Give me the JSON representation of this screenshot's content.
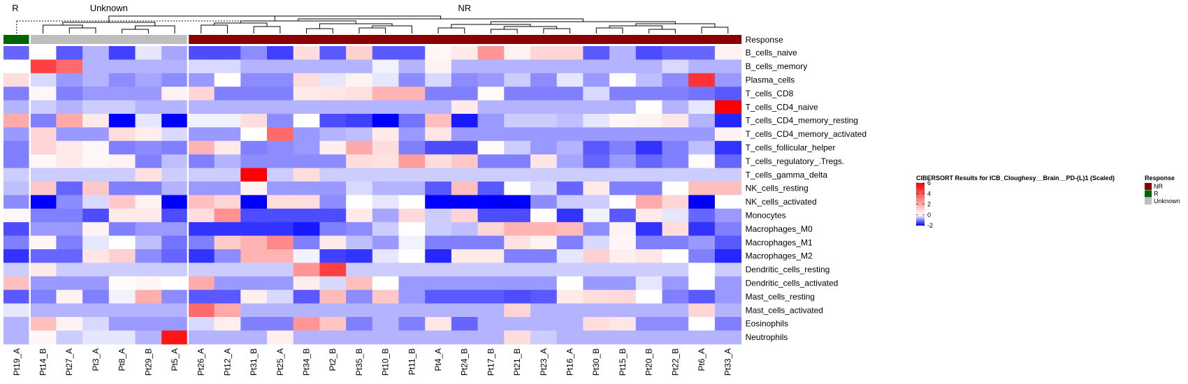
{
  "chart_data": {
    "type": "heatmap",
    "title": "CIBERSORT Results for ICB_Cloughesy__Brain__PD-(L)1 (Scaled)",
    "columns": [
      "Pt19_A",
      "Pt14_B",
      "Pt27_A",
      "Pt3_A",
      "Pt8_A",
      "Pt29_B",
      "Pt5_A",
      "Pt26_A",
      "Pt12_A",
      "Pt31_B",
      "Pt25_A",
      "Pt34_B",
      "Pt2_B",
      "Pt35_B",
      "Pt10_B",
      "Pt11_B",
      "Pt4_A",
      "Pt24_B",
      "Pt17_B",
      "Pt21_B",
      "Pt23_A",
      "Pt16_A",
      "Pt30_B",
      "Pt15_B",
      "Pt20_B",
      "Pt22_B",
      "Pt6_A",
      "Pt33_A"
    ],
    "rows": [
      "B_cells_naive",
      "B_cells_memory",
      "Plasma_cells",
      "T_cells_CD8",
      "T_cells_CD4_naive",
      "T_cells_CD4_memory_resting",
      "T_cells_CD4_memory_activated",
      "T_cells_follicular_helper",
      "T_cells_regulatory_.Tregs.",
      "T_cells_gamma_delta",
      "NK_cells_resting",
      "NK_cells_activated",
      "Monocytes",
      "Macrophages_M0",
      "Macrophages_M1",
      "Macrophages_M2",
      "Dendritic_cells_resting",
      "Dendritic_cells_activated",
      "Mast_cells_resting",
      "Mast_cells_activated",
      "Eosinophils",
      "Neutrophils"
    ],
    "response": [
      "R",
      "Unknown",
      "Unknown",
      "Unknown",
      "Unknown",
      "Unknown",
      "Unknown",
      "NR",
      "NR",
      "NR",
      "NR",
      "NR",
      "NR",
      "NR",
      "NR",
      "NR",
      "NR",
      "NR",
      "NR",
      "NR",
      "NR",
      "NR",
      "NR",
      "NR",
      "NR",
      "NR",
      "NR",
      "NR"
    ],
    "values": [
      [
        -1.2,
        0,
        -1.3,
        -0.6,
        -1.5,
        -0.2,
        -0.7,
        -1.4,
        -1.4,
        -0.9,
        -1.5,
        0.8,
        -1.3,
        1.1,
        -1.3,
        -1.3,
        0.2,
        0.5,
        2.5,
        0.3,
        1.0,
        1.0,
        -1.3,
        -0.6,
        -1.4,
        -1.2,
        -1.2,
        0.3
      ],
      [
        0,
        4.5,
        3.5,
        -0.6,
        -0.6,
        -0.6,
        -0.6,
        -0.3,
        -0.3,
        -0.6,
        -0.6,
        -0.6,
        -0.6,
        -0.6,
        -0.1,
        -0.6,
        0.3,
        -0.6,
        -0.6,
        -0.6,
        -0.6,
        -0.6,
        -0.6,
        -0.6,
        -0.6,
        -0.3,
        -0.6,
        -0.6
      ],
      [
        0.8,
        -0.3,
        -0.8,
        -0.6,
        -0.9,
        -0.7,
        -0.9,
        -0.8,
        0,
        -0.9,
        -0.9,
        0.8,
        -0.2,
        0.3,
        -0.2,
        -0.9,
        -0.3,
        -0.9,
        -0.8,
        -0.4,
        -0.9,
        -0.2,
        -0.8,
        0,
        -0.5,
        -0.9,
        4.8,
        -0.8
      ],
      [
        -1.0,
        0.2,
        -1.0,
        -0.8,
        -0.8,
        -0.8,
        0.3,
        1.0,
        -1.0,
        -1.0,
        -1.0,
        0.5,
        0.6,
        0.7,
        1.8,
        1.8,
        -1.0,
        -1.0,
        0.1,
        -1.0,
        -1.0,
        -1.0,
        -0.3,
        -1.0,
        -1.0,
        -1.0,
        -1.1,
        -1.3
      ],
      [
        -0.6,
        -0.4,
        -0.6,
        -0.4,
        -0.4,
        -0.6,
        -0.6,
        -0.6,
        -0.6,
        -0.6,
        -0.6,
        -0.6,
        -0.6,
        -0.6,
        -0.6,
        -0.6,
        -0.6,
        0.5,
        -0.6,
        -0.6,
        -0.6,
        -0.6,
        -0.6,
        -0.6,
        0,
        -0.6,
        -0.2,
        6.0
      ],
      [
        2.0,
        -1.0,
        2.0,
        0.5,
        -2.0,
        -0.2,
        -2.0,
        -0.1,
        -0.1,
        0.8,
        -0.9,
        0,
        -1.4,
        -1.5,
        -2.0,
        -1.1,
        1.5,
        -1.8,
        -0.8,
        -0.4,
        -0.4,
        -0.5,
        -0.2,
        0.2,
        0.3,
        0.6,
        -0.6,
        -1.7
      ],
      [
        -0.8,
        1.0,
        -0.8,
        -0.8,
        0.8,
        0.4,
        -0.3,
        -0.8,
        -0.8,
        0,
        3.5,
        -0.8,
        -0.6,
        -0.5,
        0.5,
        -0.8,
        0.6,
        -0.8,
        -0.8,
        -0.8,
        -0.8,
        -0.8,
        -0.8,
        -0.8,
        -0.8,
        -0.8,
        -0.8,
        0.3
      ],
      [
        -1.0,
        1.0,
        0.5,
        0.2,
        -1.0,
        -0.9,
        -1.0,
        1.8,
        0.5,
        -1.0,
        -0.9,
        -0.8,
        0.4,
        2.0,
        0.8,
        -1.0,
        -1.4,
        -1.4,
        0.1,
        -0.4,
        -0.8,
        -0.6,
        -1.3,
        -1.0,
        -1.6,
        -1.0,
        -0.5,
        -1.6
      ],
      [
        -1.0,
        0.2,
        0.5,
        0.2,
        0.3,
        -1.0,
        -0.5,
        -1.0,
        -0.6,
        -0.9,
        -0.9,
        -0.9,
        -0.9,
        0.8,
        0.7,
        2.3,
        0.8,
        1.3,
        -1.0,
        -1.0,
        0.6,
        -0.7,
        -1.2,
        -0.8,
        -1.2,
        -1.0,
        0.1,
        -1.2
      ],
      [
        -0.4,
        -0.4,
        -0.4,
        -0.4,
        -0.4,
        0.7,
        -0.4,
        -0.4,
        -0.4,
        6.0,
        -0.4,
        0.8,
        -0.4,
        -0.4,
        -0.4,
        -0.4,
        -0.4,
        -0.4,
        -0.4,
        -0.4,
        -0.4,
        -0.4,
        -0.4,
        -0.4,
        -0.4,
        -0.4,
        -0.4,
        -0.4
      ],
      [
        -0.5,
        1.3,
        -1.2,
        1.3,
        -1.0,
        -1.0,
        -0.6,
        -0.8,
        -0.8,
        0.3,
        -0.8,
        -0.8,
        -0.8,
        -0.3,
        -0.6,
        -0.6,
        -1.3,
        1.5,
        -1.3,
        0,
        -0.3,
        -1.2,
        0.5,
        -1.0,
        -1.0,
        0,
        1.5,
        1.5
      ],
      [
        -0.9,
        -2.0,
        -0.9,
        -0.3,
        1.3,
        0.3,
        -2.0,
        1.5,
        1.0,
        -2.0,
        0.8,
        0.8,
        -0.9,
        0,
        -0.2,
        0,
        -2.0,
        -2.0,
        -2.0,
        -2.0,
        -0.9,
        -0.4,
        -0.4,
        0,
        2.0,
        1.0,
        -2.0,
        0
      ],
      [
        0.2,
        -1.0,
        -1.0,
        -1.4,
        0.5,
        0.5,
        -1.4,
        0.8,
        2.6,
        -1.4,
        -1.4,
        -1.4,
        -1.4,
        0.5,
        -0.7,
        0.9,
        -0.4,
        1.0,
        -1.4,
        -1.4,
        0,
        -1.6,
        -0.1,
        -1.3,
        0.5,
        -0.2,
        -1.2,
        -0.8
      ],
      [
        -1.4,
        -0.8,
        -0.8,
        0.3,
        -1.0,
        -0.8,
        -0.8,
        -1.6,
        -1.6,
        -1.6,
        -1.6,
        -1.8,
        -1.0,
        -0.9,
        -0.4,
        0,
        -0.4,
        -0.5,
        1.0,
        1.8,
        1.8,
        1.6,
        -0.9,
        0.3,
        -1.6,
        0.8,
        -1.6,
        -1.0
      ],
      [
        -1.0,
        0.2,
        -1.0,
        -0.2,
        0,
        -0.5,
        -1.1,
        -1.0,
        1.2,
        1.8,
        2.8,
        -1.0,
        0.5,
        -0.5,
        -0.8,
        -0.1,
        -1.0,
        -1.0,
        -1.0,
        0.7,
        0.3,
        -1.0,
        -0.3,
        0.2,
        -1.0,
        -1.0,
        -0.8,
        -1.3
      ],
      [
        -1.6,
        -1.2,
        -1.2,
        0.6,
        1.1,
        -0.9,
        -1.2,
        -1.6,
        -0.9,
        1.8,
        1.8,
        -0.1,
        -1.5,
        -1.6,
        -0.2,
        0,
        -1.7,
        0.5,
        0.5,
        -1.0,
        -1.0,
        -0.2,
        1.1,
        0.4,
        0.6,
        0,
        -1.0,
        -1.7
      ],
      [
        -0.4,
        0.5,
        -0.4,
        -0.4,
        -0.4,
        -0.4,
        -0.4,
        -0.4,
        -0.4,
        -0.4,
        -0.4,
        2.5,
        4.5,
        -0.4,
        -0.4,
        -0.4,
        -0.4,
        -0.4,
        -0.4,
        -0.4,
        -0.4,
        -0.4,
        -0.4,
        -0.4,
        -0.4,
        -0.4,
        0,
        -0.4
      ],
      [
        1.5,
        -0.8,
        -0.8,
        -0.8,
        0.1,
        0.2,
        0,
        2.0,
        -0.8,
        -0.8,
        -0.8,
        0.4,
        -0.3,
        1.5,
        0,
        -0.8,
        -0.8,
        -0.8,
        -0.8,
        -0.8,
        -0.8,
        0,
        -0.8,
        -0.8,
        -0.2,
        -0.8,
        0,
        -0.8
      ],
      [
        -1.3,
        -1.0,
        0.3,
        -1.0,
        -0.1,
        1.9,
        -0.9,
        -1.3,
        -1.3,
        0.4,
        -0.3,
        -1.3,
        1.6,
        -0.9,
        1.3,
        -0.8,
        -1.3,
        -1.3,
        -1.3,
        -1.4,
        -1.3,
        0.5,
        0.8,
        0.9,
        0,
        -1.0,
        -1.3,
        -0.8
      ],
      [
        -0.2,
        -0.6,
        -0.6,
        -0.6,
        -0.6,
        -0.6,
        -0.6,
        3.5,
        2.0,
        -0.6,
        -0.6,
        -0.6,
        -0.6,
        -0.6,
        -0.6,
        -0.6,
        -0.6,
        -0.6,
        -0.6,
        1.0,
        -0.6,
        -0.6,
        -0.6,
        -0.6,
        -0.6,
        -0.6,
        1.0,
        -0.6
      ],
      [
        -0.6,
        1.5,
        0.3,
        -0.3,
        -0.8,
        -0.8,
        -0.8,
        -0.3,
        0.4,
        -1.0,
        -1.0,
        2.5,
        1.4,
        -1.0,
        -0.6,
        -1.0,
        0.6,
        -1.2,
        -0.6,
        -0.6,
        -0.6,
        -0.6,
        0.8,
        0.6,
        -0.9,
        -0.9,
        0,
        -1.0
      ],
      [
        -0.6,
        0.2,
        -0.4,
        -0.2,
        -0.2,
        -0.6,
        5.5,
        -0.6,
        -0.6,
        -0.6,
        0.4,
        -0.6,
        -0.6,
        -0.6,
        -0.6,
        -0.6,
        -0.6,
        -0.6,
        -0.6,
        0.8,
        -0.4,
        -0.6,
        -0.6,
        -0.6,
        -0.6,
        -0.6,
        -0.6,
        -0.6
      ]
    ],
    "color_scale": {
      "min": -2,
      "max": 6,
      "low": "#0000FF",
      "mid": "#FFFFFF",
      "high": "#FF0000",
      "ticks": [
        6,
        4,
        2,
        0,
        -2
      ]
    },
    "annotation": {
      "name": "Response",
      "legend": [
        {
          "label": "NR",
          "color": "#8B0000"
        },
        {
          "label": "R",
          "color": "#006400"
        },
        {
          "label": "Unknown",
          "color": "#BEBEBE"
        }
      ]
    },
    "group_labels": [
      "R",
      "Unknown",
      "NR"
    ]
  }
}
